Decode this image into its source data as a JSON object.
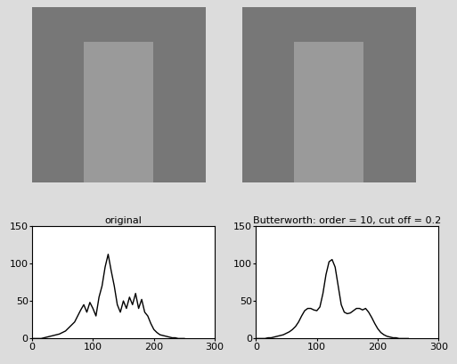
{
  "chart_data": [
    {
      "type": "line",
      "title": "original",
      "x": [
        0,
        5,
        10,
        15,
        20,
        25,
        30,
        35,
        40,
        45,
        50,
        55,
        60,
        65,
        70,
        75,
        80,
        85,
        90,
        95,
        100,
        105,
        110,
        115,
        120,
        125,
        130,
        135,
        140,
        145,
        150,
        155,
        160,
        165,
        170,
        175,
        180,
        185,
        190,
        195,
        200,
        205,
        210,
        215,
        220,
        225,
        230,
        235,
        240,
        245,
        250
      ],
      "values": [
        0,
        0,
        0,
        0,
        1,
        2,
        3,
        4,
        5,
        6,
        8,
        10,
        14,
        18,
        22,
        30,
        38,
        45,
        35,
        48,
        40,
        30,
        55,
        70,
        95,
        112,
        90,
        70,
        45,
        35,
        50,
        40,
        55,
        45,
        60,
        40,
        52,
        35,
        30,
        20,
        12,
        8,
        5,
        4,
        3,
        2,
        1,
        1,
        0,
        0,
        0
      ],
      "color": "#000000",
      "xlim": [
        0,
        300
      ],
      "xticks": [
        0,
        100,
        200,
        300
      ],
      "ylim": [
        0,
        150
      ],
      "yticks": [
        0,
        50,
        100,
        150
      ]
    },
    {
      "type": "line",
      "title": "Butterworth: order = 10, cut off = 0.2",
      "x": [
        0,
        5,
        10,
        15,
        20,
        25,
        30,
        35,
        40,
        45,
        50,
        55,
        60,
        65,
        70,
        75,
        80,
        85,
        90,
        95,
        100,
        105,
        110,
        115,
        120,
        125,
        130,
        135,
        140,
        145,
        150,
        155,
        160,
        165,
        170,
        175,
        180,
        185,
        190,
        195,
        200,
        205,
        210,
        215,
        220,
        225,
        230,
        235,
        240,
        245,
        250
      ],
      "values": [
        0,
        0,
        0,
        0,
        1,
        1,
        2,
        3,
        4,
        5,
        7,
        9,
        12,
        16,
        22,
        30,
        37,
        40,
        40,
        38,
        37,
        42,
        60,
        85,
        102,
        105,
        95,
        70,
        45,
        35,
        33,
        34,
        37,
        40,
        40,
        38,
        40,
        35,
        28,
        20,
        13,
        8,
        5,
        3,
        2,
        1,
        1,
        0,
        0,
        0,
        0
      ],
      "color": "#000000",
      "xlim": [
        0,
        300
      ],
      "xticks": [
        0,
        100,
        200,
        300
      ],
      "ylim": [
        0,
        150
      ],
      "yticks": [
        0,
        50,
        100,
        150
      ]
    }
  ]
}
